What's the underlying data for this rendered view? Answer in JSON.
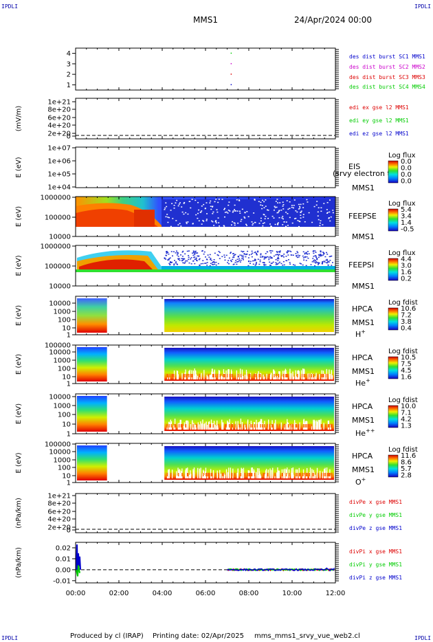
{
  "header": {
    "mission": "MMS1",
    "datetime": "24/Apr/2024 00:00",
    "corner_tags": [
      "IPDLI",
      "IPDLI",
      "IPDLI",
      "IPDLI"
    ]
  },
  "footer": {
    "produced": "Produced by cl (IRAP)",
    "printing": "Printing date: 02/Apr/2025",
    "file": "mms_mms1_srvy_vue_web2.cl"
  },
  "chart_data": [
    {
      "type": "scatter",
      "panel": "burst-flags",
      "ylim": [
        0.5,
        4.5
      ],
      "ticks": [
        "1",
        "2",
        "3",
        "4"
      ],
      "series": [
        {
          "name": "des dist burst SC1 MMS1",
          "color": "#0000cc",
          "x_hours": [
            7.1
          ],
          "y": [
            1
          ]
        },
        {
          "name": "des dist burst SC2 MMS2",
          "color": "#cc00cc",
          "x_hours": [
            7.1
          ],
          "y": [
            3
          ]
        },
        {
          "name": "des dist burst SC3 MMS3",
          "color": "#dd0000",
          "x_hours": [
            7.1
          ],
          "y": [
            2
          ]
        },
        {
          "name": "des dist burst SC4 MMS4",
          "color": "#00cc00",
          "x_hours": [
            7.1
          ],
          "y": [
            4
          ]
        }
      ]
    },
    {
      "type": "line",
      "panel": "edi-e",
      "ylabel": "(mV/m)",
      "ticks": [
        "1e+21",
        "8e+20",
        "6e+20",
        "4e+20",
        "2e+20",
        "0"
      ],
      "series": [
        {
          "name": "edi ex gse l2 MMS1",
          "color": "#dd0000"
        },
        {
          "name": "edi ey gse l2 MMS1",
          "color": "#00cc00"
        },
        {
          "name": "edi ez gse l2 MMS1",
          "color": "#0000cc"
        }
      ]
    },
    {
      "type": "heatmap",
      "panel": "eis",
      "ylabel": "E (eV)",
      "ticks": [
        "1e+07",
        "1e+06",
        "1e+05",
        "1e+04"
      ],
      "instrument": [
        "EIS",
        "MMS1"
      ],
      "overlay_label": "(srvy electron to",
      "colorbar": {
        "title": "Log flux",
        "ticks": [
          "0.0",
          "0.0",
          "0.0",
          "0.0"
        ]
      }
    },
    {
      "type": "heatmap",
      "panel": "feepse",
      "ylabel": "E (eV)",
      "ticks": [
        "1000000",
        "100000",
        "10000"
      ],
      "instrument": [
        "FEEPSE",
        "MMS1"
      ],
      "colorbar": {
        "title": "Log flux",
        "ticks": [
          "5.4",
          "3.4",
          "1.4",
          "-0.5"
        ]
      }
    },
    {
      "type": "heatmap",
      "panel": "feepsi",
      "ylabel": "E (eV)",
      "ticks": [
        "1000000",
        "100000",
        "10000"
      ],
      "instrument": [
        "FEEPSI",
        "MMS1"
      ],
      "colorbar": {
        "title": "Log flux",
        "ticks": [
          "4.4",
          "3.0",
          "1.6",
          "0.2"
        ]
      }
    },
    {
      "type": "heatmap",
      "panel": "hpca-h",
      "ylabel": "E (eV)",
      "ticks": [
        "10000",
        "1000",
        "100",
        "10",
        "1"
      ],
      "instrument": [
        "HPCA",
        "MMS1"
      ],
      "species": "H",
      "charge": "+",
      "colorbar": {
        "title": "Log fdist",
        "ticks": [
          "10.6",
          "7.2",
          "3.8",
          "0.4"
        ]
      }
    },
    {
      "type": "heatmap",
      "panel": "hpca-he",
      "ylabel": "E (eV)",
      "ticks": [
        "100000",
        "10000",
        "1000",
        "100",
        "10",
        "1"
      ],
      "instrument": [
        "HPCA",
        "MMS1"
      ],
      "species": "He",
      "charge": "+",
      "colorbar": {
        "title": "Log fdist",
        "ticks": [
          "10.5",
          "7.5",
          "4.5",
          "1.6"
        ]
      }
    },
    {
      "type": "heatmap",
      "panel": "hpca-he2",
      "ylabel": "E (eV)",
      "ticks": [
        "10000",
        "1000",
        "100",
        "10",
        "1"
      ],
      "instrument": [
        "HPCA",
        "MMS1"
      ],
      "species": "He",
      "charge": "++",
      "colorbar": {
        "title": "Log fdist",
        "ticks": [
          "10.0",
          "7.1",
          "4.2",
          "1.3"
        ]
      }
    },
    {
      "type": "heatmap",
      "panel": "hpca-o",
      "ylabel": "E (eV)",
      "ticks": [
        "100000",
        "10000",
        "1000",
        "100",
        "10",
        "1"
      ],
      "instrument": [
        "HPCA",
        "MMS1"
      ],
      "species": "O",
      "charge": "+",
      "colorbar": {
        "title": "Log fdist",
        "ticks": [
          "11.6",
          "8.6",
          "5.7",
          "2.8"
        ]
      }
    },
    {
      "type": "line",
      "panel": "divpe",
      "ylabel": "(nPa/km)",
      "ticks": [
        "1e+21",
        "8e+20",
        "6e+20",
        "4e+20",
        "2e+20",
        "0"
      ],
      "series": [
        {
          "name": "divPe x gse MMS1",
          "color": "#dd0000"
        },
        {
          "name": "divPe y gse MMS1",
          "color": "#00cc00"
        },
        {
          "name": "divPe z gse MMS1",
          "color": "#0000cc"
        }
      ]
    },
    {
      "type": "line",
      "panel": "divpi",
      "ylabel": "(nPa/km)",
      "ylim": [
        -0.012,
        0.025
      ],
      "ticks": [
        "0.02",
        "0.01",
        "0.00",
        "-0.01"
      ],
      "series": [
        {
          "name": "divPi x gse MMS1",
          "color": "#dd0000"
        },
        {
          "name": "divPi y gse MMS1",
          "color": "#00cc00"
        },
        {
          "name": "divPi z gse MMS1",
          "color": "#0000cc"
        }
      ]
    }
  ],
  "time_axis": {
    "ticks": [
      "00:00",
      "02:00",
      "04:00",
      "06:00",
      "08:00",
      "10:00",
      "12:00"
    ],
    "range_hours": [
      0,
      12
    ]
  }
}
